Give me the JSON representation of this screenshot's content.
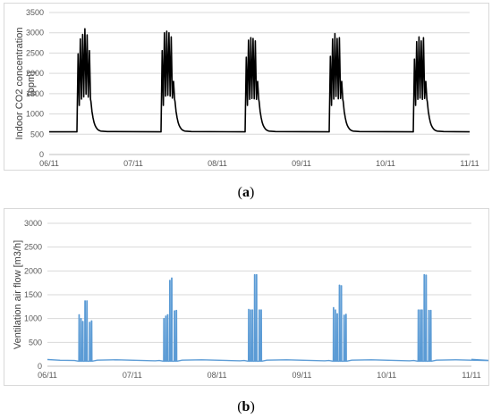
{
  "captions": {
    "a_open": "(",
    "a_letter": "a",
    "a_close": ")",
    "b_open": "(",
    "b_letter": "b",
    "b_close": ")"
  },
  "chart_data": [
    {
      "id": "a",
      "type": "line",
      "ylabel": "Indoor CO2 concentration [ppm]",
      "ylabel_lines": [
        "Indoor CO2 concentration",
        "[ppm]"
      ],
      "xlabel": "",
      "ylim": [
        0,
        3500
      ],
      "yticks": [
        0,
        500,
        1000,
        1500,
        2000,
        2500,
        3000,
        3500
      ],
      "xlim": [
        0,
        5
      ],
      "xtick_labels": [
        "06/11",
        "07/11",
        "08/11",
        "09/11",
        "10/11",
        "11/11"
      ],
      "grid": true,
      "line_color": "#000000",
      "baseline": 560,
      "days": [
        {
          "start": 0.33,
          "peaks": [
            2480,
            2850,
            2960,
            3100,
            2950,
            2560
          ]
        },
        {
          "start": 1.33,
          "peaks": [
            2560,
            3000,
            3040,
            3000,
            2900,
            1800
          ]
        },
        {
          "start": 2.33,
          "peaks": [
            2400,
            2820,
            2880,
            2860,
            2800,
            1800
          ]
        },
        {
          "start": 3.33,
          "peaks": [
            2420,
            2850,
            2980,
            2860,
            2880,
            1800
          ]
        },
        {
          "start": 4.33,
          "peaks": [
            2350,
            2780,
            2900,
            2800,
            2880,
            1800
          ]
        }
      ]
    },
    {
      "id": "b",
      "type": "line",
      "ylabel": "Ventilation air flow [m3/h]",
      "xlabel": "",
      "ylim": [
        0,
        3000
      ],
      "yticks": [
        0,
        500,
        1000,
        1500,
        2000,
        2500,
        3000
      ],
      "xlim": [
        0,
        5
      ],
      "xtick_labels": [
        "06/11",
        "07/11",
        "08/11",
        "09/11",
        "10/11",
        "11/11"
      ],
      "grid": true,
      "line_color": "#5b9bd5",
      "baseline": 120,
      "days": [
        {
          "start": 0.37,
          "spikes": [
            1080,
            1000,
            940,
            1370,
            1370,
            920,
            950
          ]
        },
        {
          "start": 1.37,
          "spikes": [
            1000,
            1050,
            1080,
            1800,
            1850,
            1160,
            1170
          ]
        },
        {
          "start": 2.37,
          "spikes": [
            1190,
            1180,
            1180,
            1920,
            1920,
            1180,
            1180
          ]
        },
        {
          "start": 3.37,
          "spikes": [
            1230,
            1180,
            1100,
            1700,
            1690,
            1070,
            1090
          ]
        },
        {
          "start": 4.37,
          "spikes": [
            1180,
            1180,
            1180,
            1920,
            1910,
            1170,
            1170
          ]
        }
      ]
    }
  ]
}
